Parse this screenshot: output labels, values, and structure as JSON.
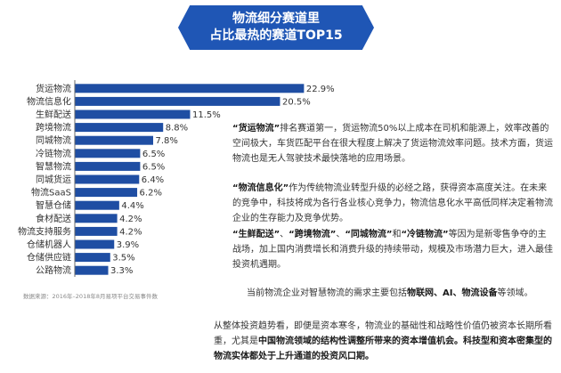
{
  "banner": {
    "line1": "物流细分赛道里",
    "line2": "占比最热的赛道TOP15"
  },
  "source": "数据来源：2016年–2018年8月易项平台交易事件数",
  "colors": {
    "bar": "#1f4ea3",
    "banner": "#1f56b5",
    "accent_text": "#1f4ea3"
  },
  "chart_data": {
    "type": "bar",
    "orientation": "horizontal",
    "categories": [
      "货运物流",
      "物流信息化",
      "生鲜配送",
      "跨境物流",
      "同城物流",
      "冷链物流",
      "智慧物流",
      "同城货运",
      "物流SaaS",
      "智慧仓储",
      "食材配送",
      "物流支持服务",
      "仓储机器人",
      "仓储供应链",
      "公路物流"
    ],
    "values": [
      22.9,
      20.5,
      11.5,
      8.8,
      7.8,
      6.5,
      6.5,
      6.4,
      6.2,
      4.4,
      4.2,
      4.2,
      3.9,
      3.5,
      3.3
    ],
    "value_labels": [
      "22.9%",
      "20.5%",
      "11.5%",
      "8.8%",
      "7.8%",
      "6.5%",
      "6.5%",
      "6.4%",
      "6.2%",
      "4.4%",
      "4.2%",
      "4.2%",
      "3.9%",
      "3.5%",
      "3.3%"
    ],
    "unit": "%",
    "xlim": [
      0,
      23
    ],
    "grid": false
  },
  "text": {
    "p1": [
      {
        "t": "“货运物流”",
        "s": "strong"
      },
      {
        "t": "排名赛道第一，货运物流50%以上成本在司机和能源上，效率改善的空间极大，车货匹配平台在很大程度上解决了货运物流效率问题。技术方面，货运物流也是无人驾驶技术最快落地的应用场景。",
        "s": ""
      }
    ],
    "p2": [
      {
        "t": "“物流信息化”",
        "s": "strong"
      },
      {
        "t": "作为传统物流业转型升级的必经之路，获得资本高度关注。在未来的竞争中，科技将成为各行各业核心竞争力，物流信息化水平高低同样决定着物流企业的生存能力及竞争优势。",
        "s": ""
      }
    ],
    "p3": [
      {
        "t": "“生鲜配送”",
        "s": "strong"
      },
      {
        "t": "、",
        "s": ""
      },
      {
        "t": "“跨境物流”",
        "s": "strong"
      },
      {
        "t": "、",
        "s": ""
      },
      {
        "t": "“同城物流”",
        "s": "strong"
      },
      {
        "t": "和",
        "s": ""
      },
      {
        "t": "“冷链物流”",
        "s": "strong"
      },
      {
        "t": "等因为是新零售争夺的主战场，加上国内消费增长和消费升级的持续带动，规模及市场潜力巨大，进入最佳投资机遇期。",
        "s": ""
      }
    ],
    "p4": [
      {
        "t": "当前物流企业对智慧物流的需求主要包括",
        "s": ""
      },
      {
        "t": "物联网、AI、物流设备",
        "s": "strong"
      },
      {
        "t": "等领域。",
        "s": ""
      }
    ],
    "p5": [
      {
        "t": "从整体投资趋势看，即便是资本寒冬，物流业的基础性和战略性价值仍被资本长期所看重，尤其是",
        "s": ""
      },
      {
        "t": "中国物流领域的结构性调整所带来的资本增值机会。科技型和资本密集型的物流实体都处于上升通道的投资风口期。",
        "s": "strong"
      }
    ]
  }
}
